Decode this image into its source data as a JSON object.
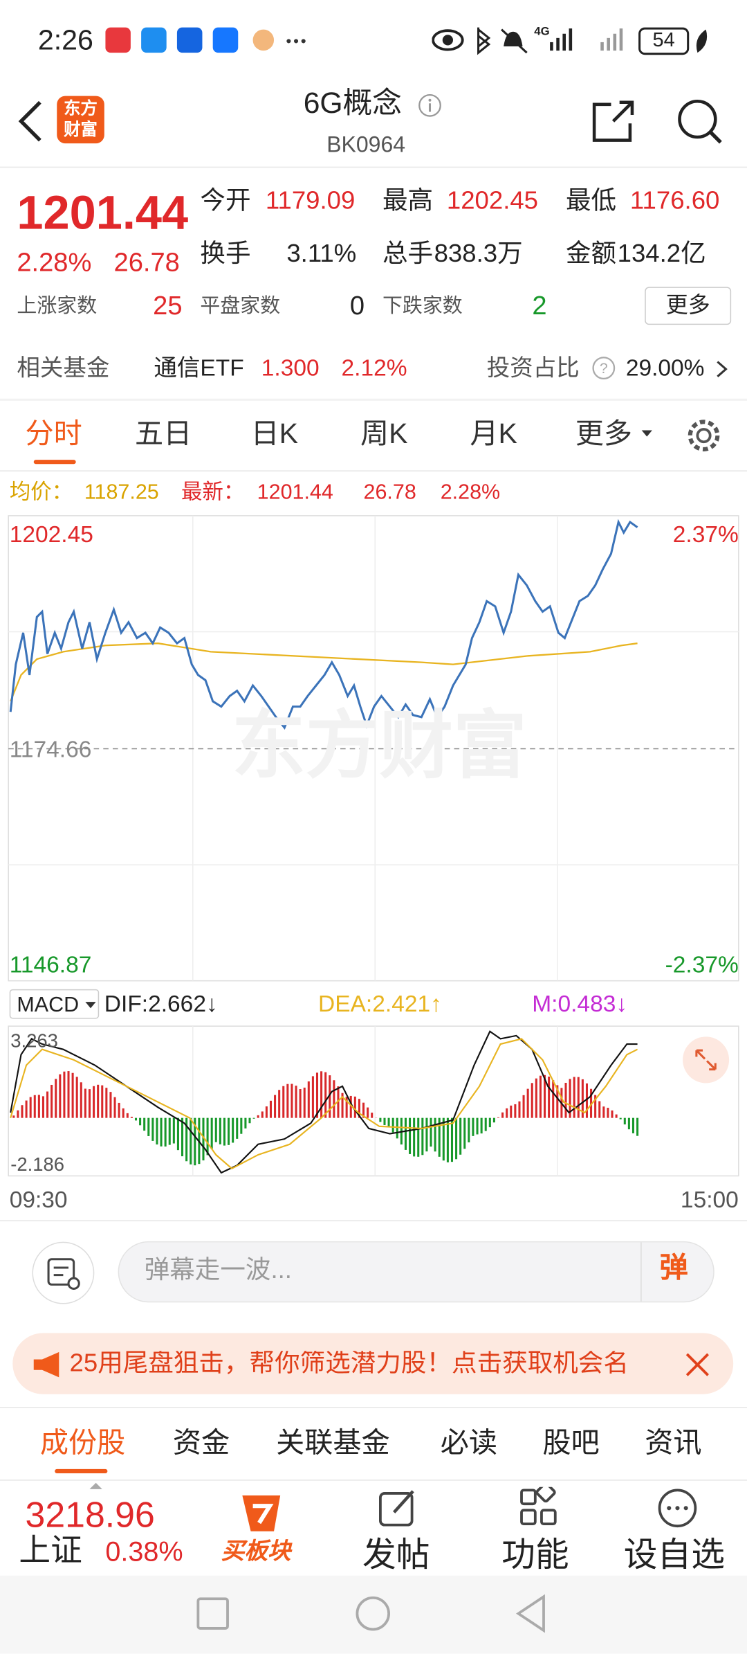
{
  "status_bar": {
    "time": "2:26",
    "network": "4G",
    "battery": "54"
  },
  "header": {
    "logo": "东方财富",
    "title": "6G概念",
    "code": "BK0964"
  },
  "quote": {
    "price": "1201.44",
    "change_pct": "2.28%",
    "change": "26.78",
    "stats": [
      {
        "label": "今开",
        "value": "1179.09"
      },
      {
        "label": "最高",
        "value": "1202.45"
      },
      {
        "label": "最低",
        "value": "1176.60"
      },
      {
        "label": "换手",
        "value": "3.11%"
      },
      {
        "label": "总手",
        "value": "838.3万"
      },
      {
        "label": "金额",
        "value": "134.2亿"
      }
    ],
    "breadth": [
      {
        "label": "上涨家数",
        "value": "25"
      },
      {
        "label": "平盘家数",
        "value": "0"
      },
      {
        "label": "下跌家数",
        "value": "2"
      }
    ],
    "more": "更多"
  },
  "fund": {
    "label": "相关基金",
    "name": "通信ETF",
    "price": "1.300",
    "change": "2.12%",
    "ratio_label": "投资占比",
    "ratio": "29.00%"
  },
  "tabs": [
    "分时",
    "五日",
    "日K",
    "周K",
    "月K",
    "更多"
  ],
  "chart": {
    "avg_label": "均价：",
    "avg": "1187.25",
    "last_label": "最新：",
    "last": "1201.44",
    "change": "26.78",
    "change_pct": "2.28%",
    "high": "1202.45",
    "high_pct": "2.37%",
    "base": "1174.66",
    "low": "1146.87",
    "low_pct": "-2.37%",
    "watermark": "东方财富",
    "start_time": "09:30",
    "end_time": "15:00"
  },
  "macd": {
    "name": "MACD",
    "dif": "DIF:2.662↓",
    "dea": "DEA:2.421↑",
    "m": "M:0.483↓",
    "max": "3.263",
    "min": "-2.186"
  },
  "comment": {
    "placeholder": "弹幕走一波...",
    "button": "弹"
  },
  "banner": {
    "text": "25用尾盘狙击，帮你筛选潜力股！点击获取机会名"
  },
  "sections": [
    "成份股",
    "资金",
    "关联基金",
    "必读",
    "股吧",
    "资讯"
  ],
  "bottom_bar": {
    "index_value": "3218.96",
    "index_name": "上证",
    "index_change": "0.38%",
    "items": [
      "买板块",
      "发帖",
      "功能",
      "设自选"
    ]
  }
}
